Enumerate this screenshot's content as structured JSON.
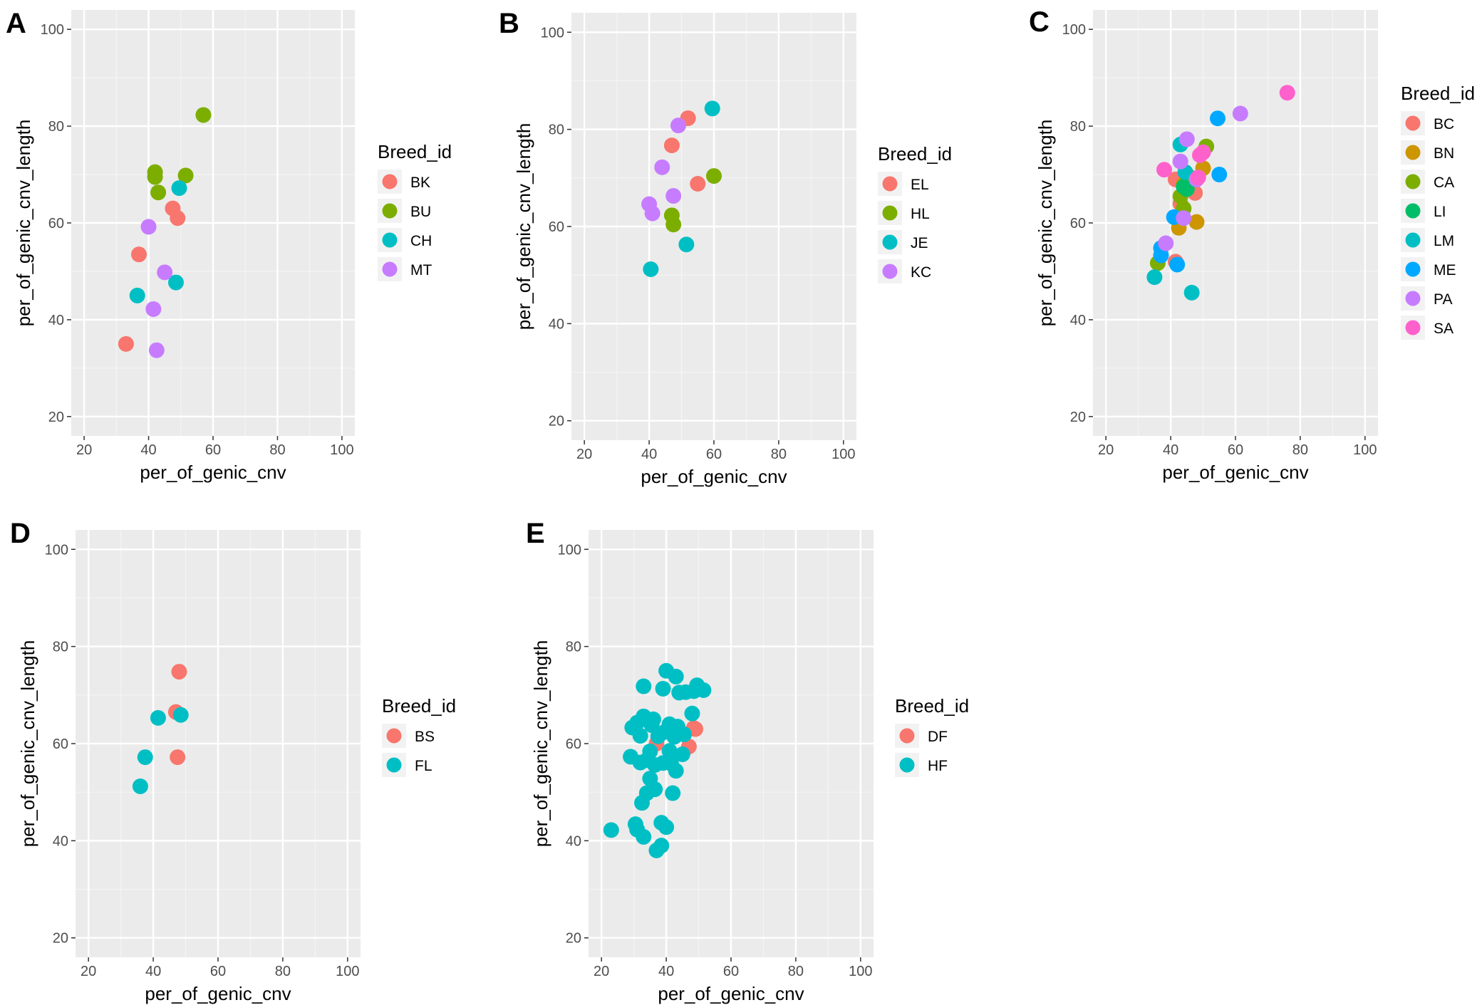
{
  "chart_data": [
    {
      "panel": "A",
      "type": "scatter",
      "xlabel": "per_of_genic_cnv",
      "ylabel": "per_of_genic_cnv_length",
      "xlim": [
        16,
        104
      ],
      "ylim": [
        16,
        104
      ],
      "xticks": [
        20,
        40,
        60,
        80,
        100
      ],
      "yticks": [
        20,
        40,
        60,
        80,
        100
      ],
      "legend_title": "Breed_id",
      "legend_position": "right",
      "series": [
        {
          "name": "BK",
          "color": "#F8766D",
          "points": [
            [
              33,
              35
            ],
            [
              37,
              53.5
            ],
            [
              47.5,
              63
            ],
            [
              49,
              61
            ]
          ]
        },
        {
          "name": "BU",
          "color": "#7CAE00",
          "points": [
            [
              42,
              70.5
            ],
            [
              42,
              69.5
            ],
            [
              43,
              66.3
            ],
            [
              51.5,
              69.8
            ],
            [
              57,
              82.3
            ]
          ]
        },
        {
          "name": "CH",
          "color": "#00BFC4",
          "points": [
            [
              36.5,
              45
            ],
            [
              48.5,
              47.7
            ],
            [
              49.5,
              67.2
            ]
          ]
        },
        {
          "name": "MT",
          "color": "#C77CFF",
          "points": [
            [
              40,
              59.2
            ],
            [
              41.5,
              42.2
            ],
            [
              42.5,
              33.7
            ],
            [
              45,
              49.8
            ]
          ]
        }
      ]
    },
    {
      "panel": "B",
      "type": "scatter",
      "xlabel": "per_of_genic_cnv",
      "ylabel": "per_of_genic_cnv_length",
      "xlim": [
        16,
        104
      ],
      "ylim": [
        16,
        104
      ],
      "xticks": [
        20,
        40,
        60,
        80,
        100
      ],
      "yticks": [
        20,
        40,
        60,
        80,
        100
      ],
      "legend_title": "Breed_id",
      "legend_position": "right",
      "series": [
        {
          "name": "EL",
          "color": "#F8766D",
          "points": [
            [
              47,
              76.7
            ],
            [
              52,
              82.3
            ],
            [
              55,
              68.8
            ]
          ]
        },
        {
          "name": "HL",
          "color": "#7CAE00",
          "points": [
            [
              47,
              62.3
            ],
            [
              47.5,
              60.4
            ],
            [
              60,
              70.4
            ]
          ]
        },
        {
          "name": "JE",
          "color": "#00BFC4",
          "points": [
            [
              40.5,
              51.2
            ],
            [
              51.5,
              56.3
            ],
            [
              59.5,
              84.3
            ]
          ]
        },
        {
          "name": "KC",
          "color": "#C77CFF",
          "points": [
            [
              40,
              64.6
            ],
            [
              41,
              62.7
            ],
            [
              44,
              72.2
            ],
            [
              47.5,
              66.3
            ],
            [
              49,
              80.8
            ]
          ]
        }
      ]
    },
    {
      "panel": "C",
      "type": "scatter",
      "xlabel": "per_of_genic_cnv",
      "ylabel": "per_of_genic_cnv_length",
      "xlim": [
        16,
        104
      ],
      "ylim": [
        16,
        104
      ],
      "xticks": [
        20,
        40,
        60,
        80,
        100
      ],
      "yticks": [
        20,
        40,
        60,
        80,
        100
      ],
      "legend_title": "Breed_id",
      "legend_position": "right",
      "series": [
        {
          "name": "BC",
          "color": "#F8766D",
          "points": [
            [
              41.5,
              69
            ],
            [
              41.5,
              52
            ],
            [
              47.5,
              66.2
            ],
            [
              43,
              64
            ]
          ]
        },
        {
          "name": "BN",
          "color": "#CD9600",
          "points": [
            [
              42.5,
              59
            ],
            [
              48,
              60.2
            ],
            [
              50,
              71.3
            ],
            [
              44,
              68
            ]
          ]
        },
        {
          "name": "CA",
          "color": "#7CAE00",
          "points": [
            [
              36,
              51.7
            ],
            [
              43,
              65.5
            ],
            [
              44,
              63
            ],
            [
              51,
              75.8
            ],
            [
              45,
              70
            ]
          ]
        },
        {
          "name": "LI",
          "color": "#00BE67",
          "points": [
            [
              44,
              67.5
            ],
            [
              45,
              67
            ]
          ]
        },
        {
          "name": "LM",
          "color": "#00BFC4",
          "points": [
            [
              35,
              48.8
            ],
            [
              43,
              76.2
            ],
            [
              46.5,
              45.6
            ],
            [
              44.5,
              70.5
            ]
          ]
        },
        {
          "name": "ME",
          "color": "#00A9FF",
          "points": [
            [
              37,
              54.8
            ],
            [
              37,
              53.3
            ],
            [
              41,
              61.2
            ],
            [
              42,
              51.4
            ],
            [
              54.5,
              81.6
            ],
            [
              55,
              70
            ]
          ]
        },
        {
          "name": "PA",
          "color": "#C77CFF",
          "points": [
            [
              38.5,
              55.8
            ],
            [
              43,
              72.7
            ],
            [
              44,
              61
            ],
            [
              45,
              77.3
            ],
            [
              48,
              69
            ],
            [
              61.5,
              82.6
            ]
          ]
        },
        {
          "name": "SA",
          "color": "#FF61CC",
          "points": [
            [
              38,
              71
            ],
            [
              48.5,
              69.4
            ],
            [
              49,
              74
            ],
            [
              50,
              74.6
            ],
            [
              76,
              86.9
            ]
          ]
        }
      ]
    },
    {
      "panel": "D",
      "type": "scatter",
      "xlabel": "per_of_genic_cnv",
      "ylabel": "per_of_genic_cnv_length",
      "xlim": [
        16,
        104
      ],
      "ylim": [
        16,
        104
      ],
      "xticks": [
        20,
        40,
        60,
        80,
        100
      ],
      "yticks": [
        20,
        40,
        60,
        80,
        100
      ],
      "legend_title": "Breed_id",
      "legend_position": "right",
      "series": [
        {
          "name": "BS",
          "color": "#F8766D",
          "points": [
            [
              47,
              66.5
            ],
            [
              47.5,
              57.2
            ],
            [
              48,
              74.8
            ]
          ]
        },
        {
          "name": "FL",
          "color": "#00BFC4",
          "points": [
            [
              36,
              51.2
            ],
            [
              37.5,
              57.2
            ],
            [
              41.5,
              65.3
            ],
            [
              48.5,
              65.9
            ]
          ]
        }
      ]
    },
    {
      "panel": "E",
      "type": "scatter",
      "xlabel": "per_of_genic_cnv",
      "ylabel": "per_of_genic_cnv_length",
      "xlim": [
        16,
        104
      ],
      "ylim": [
        16,
        104
      ],
      "xticks": [
        20,
        40,
        60,
        80,
        100
      ],
      "yticks": [
        20,
        40,
        60,
        80,
        100
      ],
      "legend_title": "Breed_id",
      "legend_position": "right",
      "series": [
        {
          "name": "DF",
          "color": "#F8766D",
          "points": [
            [
              37,
              60
            ],
            [
              47,
              59.4
            ],
            [
              48.5,
              63.2
            ],
            [
              49,
              63
            ]
          ]
        },
        {
          "name": "HF",
          "color": "#00BFC4",
          "points": [
            [
              23,
              42.2
            ],
            [
              29,
              57.3
            ],
            [
              29.5,
              63.3
            ],
            [
              30.5,
              43.4
            ],
            [
              31,
              42.3
            ],
            [
              31,
              64.3
            ],
            [
              32,
              56.1
            ],
            [
              32,
              61.6
            ],
            [
              32.5,
              47.8
            ],
            [
              33,
              40.8
            ],
            [
              33,
              71.8
            ],
            [
              33,
              65.6
            ],
            [
              34,
              56.6
            ],
            [
              34,
              49.8
            ],
            [
              35,
              58.4
            ],
            [
              35,
              52.8
            ],
            [
              35.5,
              63.8
            ],
            [
              36,
              65
            ],
            [
              36.5,
              50.6
            ],
            [
              36.5,
              55.6
            ],
            [
              37,
              38
            ],
            [
              37.5,
              61.5
            ],
            [
              38.5,
              43.7
            ],
            [
              38.5,
              39
            ],
            [
              39,
              71.3
            ],
            [
              39,
              56
            ],
            [
              39.5,
              62.4
            ],
            [
              40,
              42.8
            ],
            [
              40,
              75
            ],
            [
              41,
              64
            ],
            [
              41,
              58.5
            ],
            [
              41.5,
              55.9
            ],
            [
              42,
              49.8
            ],
            [
              42.5,
              61.4
            ],
            [
              43,
              73.8
            ],
            [
              43,
              54.4
            ],
            [
              43.5,
              63.5
            ],
            [
              44,
              70.5
            ],
            [
              45,
              57.8
            ],
            [
              45.5,
              61.9
            ],
            [
              46,
              70.6
            ],
            [
              48,
              66.2
            ],
            [
              48.5,
              70.8
            ],
            [
              49.5,
              72
            ],
            [
              51.5,
              71
            ]
          ]
        }
      ]
    }
  ]
}
